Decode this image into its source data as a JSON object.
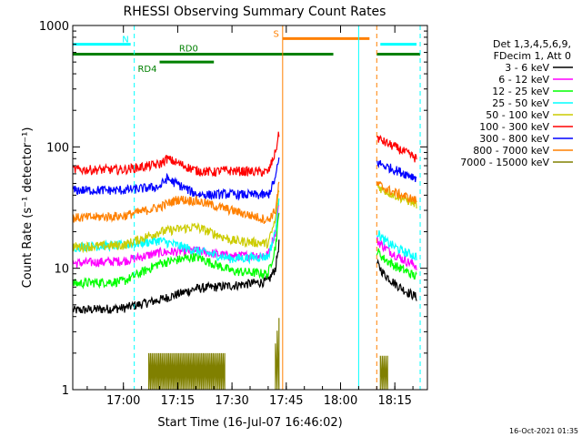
{
  "chart_data": {
    "type": "line",
    "title": "RHESSI Observing Summary Count Rates",
    "xlabel": "Start Time (16-Jul-07 16:46:02)",
    "ylabel": "Count Rate (s⁻¹ detector⁻¹)",
    "yscale": "log",
    "ylim": [
      1,
      1000
    ],
    "xlim": [
      "16:46",
      "18:24"
    ],
    "x_ticks": [
      "17:00",
      "17:15",
      "17:30",
      "17:45",
      "18:00",
      "18:15"
    ],
    "y_ticks": [
      "1",
      "10",
      "100",
      "1000"
    ],
    "footer_date": "16-Oct-2021 01:35",
    "legend": {
      "placement": "top-right",
      "header": [
        "Det 1,3,4,5,6,9,",
        "FDecim 1, Att 0"
      ]
    },
    "flags": [
      {
        "label": "N",
        "color": "#00ffff",
        "y": 700,
        "segments": [
          [
            "16:46",
            "17:02"
          ],
          [
            "18:11",
            "18:21"
          ]
        ]
      },
      {
        "label": "S",
        "color": "#ff8000",
        "y": 780,
        "segments": [
          [
            "17:44",
            "18:08"
          ]
        ]
      },
      {
        "label": "RD0",
        "color": "#008000",
        "y": 580,
        "segments": [
          [
            "16:46",
            "17:58"
          ],
          [
            "18:10",
            "18:22"
          ]
        ]
      },
      {
        "label": "RD4",
        "color": "#008000",
        "y": 500,
        "segments": [
          [
            "17:10",
            "17:25"
          ]
        ]
      }
    ],
    "vlines": [
      {
        "x": "16:46",
        "color": "#00ffff",
        "style": "solid"
      },
      {
        "x": "17:03",
        "color": "#00ffff",
        "style": "dashed"
      },
      {
        "x": "17:44",
        "color": "#ff8000",
        "style": "solid"
      },
      {
        "x": "18:05",
        "color": "#00ffff",
        "style": "solid"
      },
      {
        "x": "18:10",
        "color": "#ff8000",
        "style": "dashed"
      },
      {
        "x": "18:22",
        "color": "#00ffff",
        "style": "dashed"
      }
    ],
    "series": [
      {
        "name": "3 - 6 keV",
        "color": "#000000",
        "segments": [
          {
            "x": [
              "16:46",
              "17:00",
              "17:10",
              "17:20",
              "17:30",
              "17:40",
              "17:42",
              "17:43"
            ],
            "y": [
              4.5,
              4.7,
              5.5,
              6.8,
              7.2,
              7.8,
              10,
              16
            ]
          },
          {
            "x": [
              "18:10",
              "18:12",
              "18:15",
              "18:18",
              "18:21"
            ],
            "y": [
              11,
              9,
              7.5,
              6.5,
              5.8
            ]
          }
        ]
      },
      {
        "name": "6 - 12 keV",
        "color": "#ff00ff",
        "segments": [
          {
            "x": [
              "16:46",
              "17:00",
              "17:10",
              "17:20",
              "17:30",
              "17:40",
              "17:42",
              "17:43"
            ],
            "y": [
              11,
              11.5,
              13.5,
              14,
              12.5,
              13,
              20,
              35
            ]
          },
          {
            "x": [
              "18:10",
              "18:12",
              "18:15",
              "18:18",
              "18:21"
            ],
            "y": [
              17,
              15,
              13,
              11.5,
              10.5
            ]
          }
        ]
      },
      {
        "name": "12 - 25 keV",
        "color": "#00ff00",
        "segments": [
          {
            "x": [
              "16:46",
              "17:00",
              "17:10",
              "17:20",
              "17:30",
              "17:40",
              "17:42",
              "17:43"
            ],
            "y": [
              7.5,
              7.8,
              11,
              12.5,
              9.5,
              9,
              15,
              28
            ]
          },
          {
            "x": [
              "18:10",
              "18:12",
              "18:15",
              "18:18",
              "18:21"
            ],
            "y": [
              14,
              12,
              10.5,
              9.5,
              8.5
            ]
          }
        ]
      },
      {
        "name": "25 - 50 keV",
        "color": "#00ffff",
        "segments": [
          {
            "x": [
              "16:46",
              "17:00",
              "17:10",
              "17:20",
              "17:30",
              "17:40",
              "17:42",
              "17:43"
            ],
            "y": [
              15,
              15.5,
              17,
              14,
              12,
              12.5,
              20,
              40
            ]
          },
          {
            "x": [
              "18:10",
              "18:12",
              "18:15",
              "18:18",
              "18:21"
            ],
            "y": [
              20,
              17,
              15,
              13.5,
              12.5
            ]
          }
        ]
      },
      {
        "name": "50 - 100 keV",
        "color": "#cccc00",
        "segments": [
          {
            "x": [
              "16:46",
              "17:00",
              "17:10",
              "17:20",
              "17:30",
              "17:40",
              "17:42",
              "17:43"
            ],
            "y": [
              15,
              15.5,
              20,
              22,
              17,
              16,
              25,
              45
            ]
          },
          {
            "x": [
              "18:10",
              "18:12",
              "18:15",
              "18:18",
              "18:21"
            ],
            "y": [
              48,
              44,
              40,
              37,
              34
            ]
          }
        ]
      },
      {
        "name": "100 - 300 keV",
        "color": "#ff0000",
        "segments": [
          {
            "x": [
              "16:46",
              "17:00",
              "17:10",
              "17:12",
              "17:20",
              "17:25",
              "17:27",
              "17:40",
              "17:42",
              "17:43"
            ],
            "y": [
              65,
              65,
              72,
              80,
              64,
              62,
              64,
              62,
              90,
              130
            ]
          },
          {
            "x": [
              "18:10",
              "18:12",
              "18:15",
              "18:18",
              "18:21"
            ],
            "y": [
              120,
              110,
              100,
              90,
              80
            ]
          }
        ]
      },
      {
        "name": "300 - 800 keV",
        "color": "#0000ff",
        "segments": [
          {
            "x": [
              "16:46",
              "17:00",
              "17:10",
              "17:12",
              "17:20",
              "17:25",
              "17:27",
              "17:40",
              "17:42",
              "17:43"
            ],
            "y": [
              44,
              44,
              47,
              55,
              41,
              40,
              41,
              40,
              55,
              80
            ]
          },
          {
            "x": [
              "18:10",
              "18:12",
              "18:15",
              "18:18",
              "18:21"
            ],
            "y": [
              75,
              70,
              65,
              60,
              56
            ]
          }
        ]
      },
      {
        "name": "800 - 7000 keV",
        "color": "#ff8000",
        "segments": [
          {
            "x": [
              "16:46",
              "17:00",
              "17:10",
              "17:15",
              "17:20",
              "17:30",
              "17:40",
              "17:42",
              "17:43"
            ],
            "y": [
              26,
              27,
              32,
              37,
              36,
              30,
              25,
              30,
              50
            ]
          },
          {
            "x": [
              "18:10",
              "18:12",
              "18:15",
              "18:18",
              "18:21"
            ],
            "y": [
              50,
              46,
              42,
              39,
              36
            ]
          }
        ]
      },
      {
        "name": "7000 - 15000 keV",
        "color": "#808000",
        "segments": [
          {
            "x": [
              "17:07",
              "17:28"
            ],
            "y": [
              2,
              2
            ]
          },
          {
            "x": [
              "17:42",
              "17:43"
            ],
            "y": [
              2.4,
              3.9
            ]
          },
          {
            "x": [
              "18:11",
              "18:13"
            ],
            "y": [
              1.9,
              1.9
            ]
          }
        ]
      }
    ]
  }
}
